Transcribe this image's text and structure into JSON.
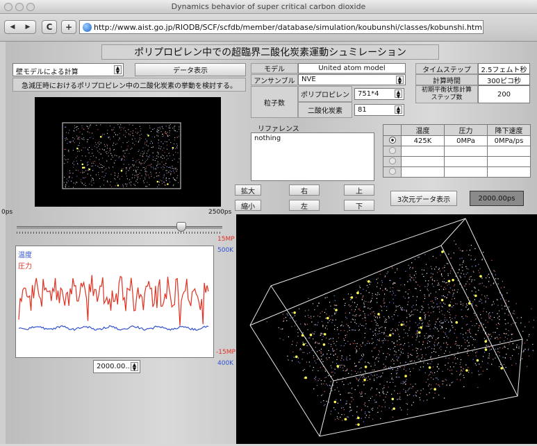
{
  "window": {
    "title": "Dynamics behavior of super critical carbon dioxide",
    "url": "http://www.aist.go.jp/RIODB/SCF/scfdb/member/database/simulation/koubunshi/classes/kobunshi.html",
    "back": "◀",
    "forward": "▶",
    "reload": "C",
    "add": "+"
  },
  "applet": {
    "main_title": "ポリプロピレン中での超臨界二酸化炭素運動シュミレーション",
    "calc_select": "壁モデルによる計算",
    "data_button": "データ表示",
    "description": "急減圧時におけるポリプロピレン中の二酸化炭素の挙動を検討する。",
    "model_label": "モデル",
    "model_value": "United   atom   model",
    "ensemble_label": "アンサンブル",
    "ensemble_value": "NVE",
    "particles_label": "粒子数",
    "pp_label": "ポリプロピレン",
    "pp_value": "751*4",
    "co2_label": "二酸化炭素",
    "co2_value": "81",
    "timestep_label": "タイムステップ",
    "timestep_value": "2.5フェムト秒",
    "calc_time_label": "計算時間",
    "calc_time_value": "300ピコ秒",
    "init_steps_label": "初期平衡状態計算ステップ数",
    "init_steps_value": "200",
    "reference_label": "リファレンス",
    "reference_text": "nothing",
    "table_headers": [
      "温度",
      "圧力",
      "降下速度"
    ],
    "table_rows": [
      {
        "temp": "425K",
        "pressure": "0MPa",
        "speed": "0MPa/ps"
      },
      {
        "temp": "",
        "pressure": "",
        "speed": ""
      },
      {
        "temp": "",
        "pressure": "",
        "speed": ""
      },
      {
        "temp": "",
        "pressure": "",
        "speed": ""
      }
    ],
    "zoom_in": "拡大",
    "zoom_out": "縮小",
    "right": "右",
    "left": "左",
    "up": "上",
    "down": "下",
    "show_3d": "3次元データ表示",
    "time_display": "2000.00ps",
    "slider_start": "0ps",
    "slider_end": "2500ps",
    "slider_fraction": 0.8,
    "legend_temp": "温度",
    "legend_pressure": "圧力",
    "axis_p_top": "15MP",
    "axis_t_top": "500K",
    "axis_p_bottom": "-15MP",
    "axis_t_bottom": "400K",
    "time_select": "2000.00..."
  },
  "colors": {
    "temp": "#3050d0",
    "pressure": "#e03020"
  }
}
